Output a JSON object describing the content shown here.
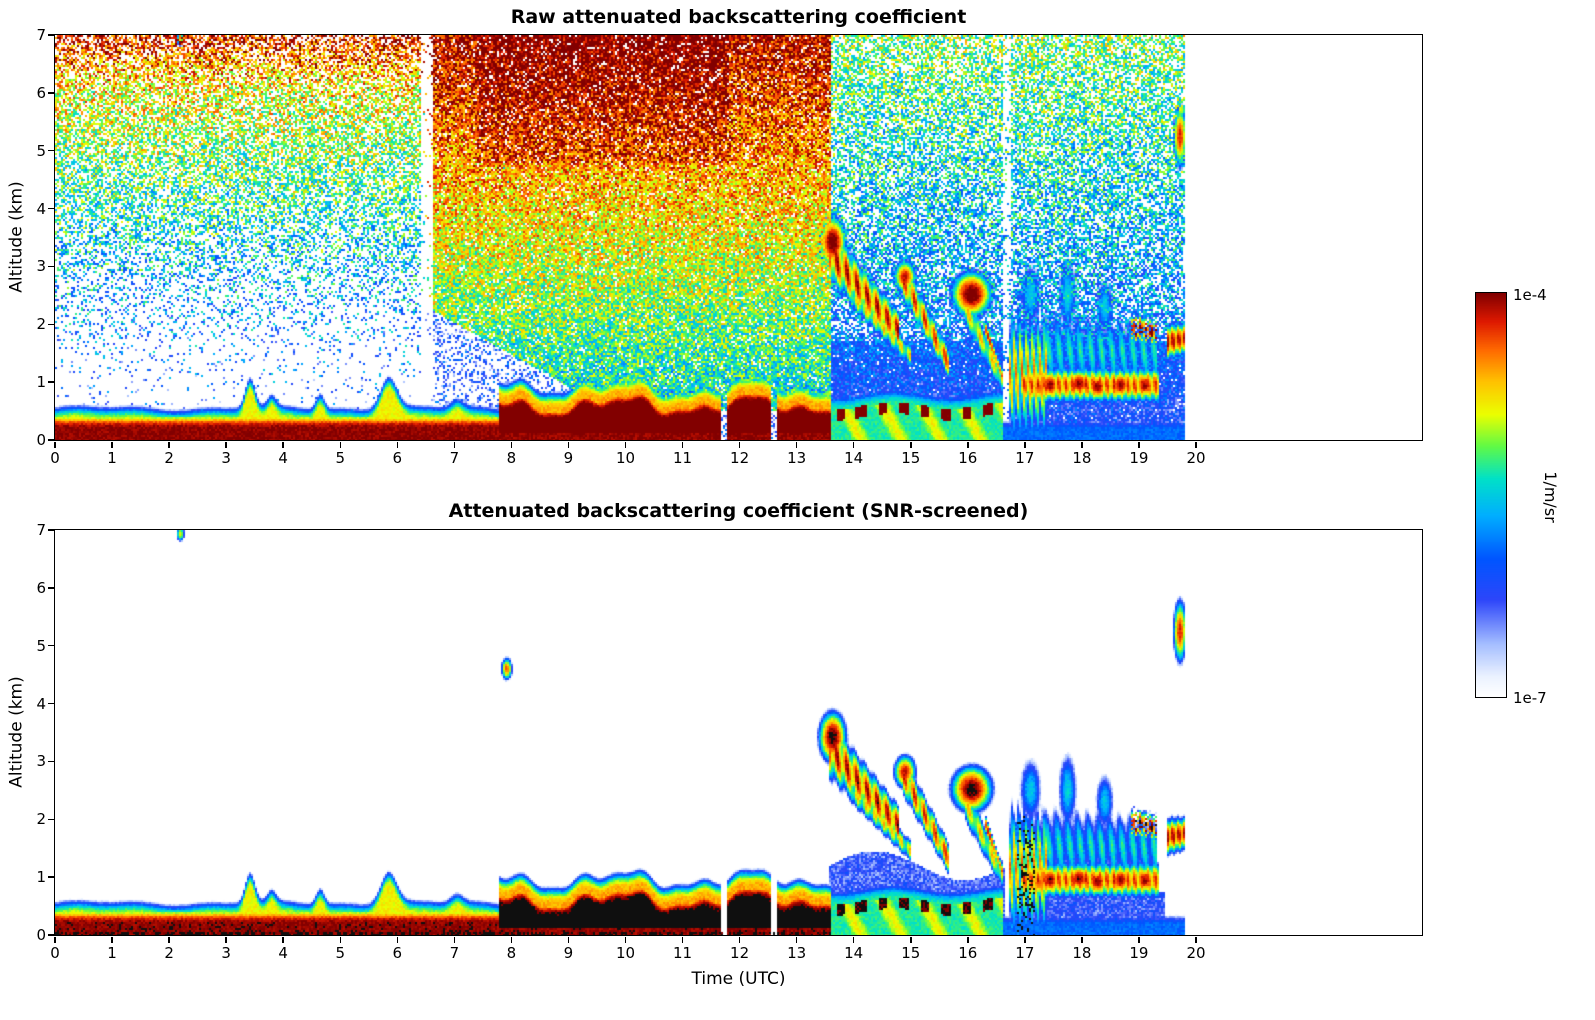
{
  "chart_data": {
    "type": "heatmap",
    "panels": [
      {
        "title": "Raw attenuated backscattering coefficient",
        "xlabel": "",
        "ylabel": "Altitude (km)",
        "xlim": [
          0,
          23.96
        ],
        "ylim": [
          0,
          7
        ],
        "xticks": [
          0,
          1,
          2,
          3,
          4,
          5,
          6,
          7,
          8,
          9,
          10,
          11,
          12,
          13,
          14,
          15,
          16,
          17,
          18,
          19,
          20
        ],
        "yticks": [
          0,
          1,
          2,
          3,
          4,
          5,
          6,
          7
        ],
        "show_noise": true,
        "show_black": false
      },
      {
        "title": "Attenuated backscattering coefficient (SNR-screened)",
        "xlabel": "Time (UTC)",
        "ylabel": "Altitude (km)",
        "xlim": [
          0,
          23.96
        ],
        "ylim": [
          0,
          7
        ],
        "xticks": [
          0,
          1,
          2,
          3,
          4,
          5,
          6,
          7,
          8,
          9,
          10,
          11,
          12,
          13,
          14,
          15,
          16,
          17,
          18,
          19,
          20
        ],
        "yticks": [
          0,
          1,
          2,
          3,
          4,
          5,
          6,
          7
        ],
        "show_noise": false,
        "show_black": true
      }
    ],
    "colorbar": {
      "top_label": "1e-4",
      "bottom_label": "1e-7",
      "units": "1/m/sr",
      "log_min": -7,
      "log_max": -4
    },
    "features": {
      "t_end": 19.82,
      "boundary_layer": {
        "spikes": [
          {
            "t": 3.42,
            "amp": 0.5,
            "w": 0.12
          },
          {
            "t": 3.8,
            "amp": 0.18,
            "w": 0.1
          },
          {
            "t": 4.65,
            "amp": 0.26,
            "w": 0.1
          },
          {
            "t": 5.85,
            "amp": 0.55,
            "w": 0.2
          },
          {
            "t": 7.05,
            "amp": 0.14,
            "w": 0.15
          }
        ],
        "gaps": [
          [
            11.68,
            11.78
          ],
          [
            12.56,
            12.64
          ]
        ]
      },
      "bands": [
        {
          "t0": 13.55,
          "z0": 3.25,
          "t1": 14.78,
          "z1": 1.9,
          "th0": 0.45,
          "th1": 0.3,
          "v": -4.25,
          "stripe": 0.45,
          "freq": 40
        },
        {
          "t0": 13.95,
          "z0": 2.5,
          "t1": 15.0,
          "z1": 1.45,
          "th0": 0.22,
          "th1": 0.18,
          "v": -4.85,
          "stripe": 0.4,
          "freq": 45
        },
        {
          "t0": 14.85,
          "z0": 2.8,
          "t1": 15.68,
          "z1": 1.3,
          "th0": 0.32,
          "th1": 0.24,
          "v": -4.4,
          "stripe": 0.45,
          "freq": 42
        },
        {
          "t0": 15.95,
          "z0": 2.3,
          "t1": 16.62,
          "z1": 1.0,
          "th0": 0.32,
          "th1": 0.22,
          "v": -4.8,
          "stripe": 0.35,
          "freq": 38
        },
        {
          "t0": 16.3,
          "z0": 1.95,
          "t1": 16.62,
          "z1": 1.05,
          "th0": 0.13,
          "th1": 0.1,
          "v": -4.3,
          "stripe": 0.2,
          "freq": 30
        },
        {
          "t0": 16.72,
          "z0": 1.15,
          "t1": 17.38,
          "z1": 1.1,
          "th0": 1.0,
          "th1": 0.95,
          "v": -4.75,
          "stripe": 0.55,
          "freq": 58
        },
        {
          "t0": 17.35,
          "z0": 1.55,
          "t1": 19.3,
          "z1": 1.5,
          "th0": 0.7,
          "th1": 0.6,
          "v": -5.5,
          "stripe": 0.4,
          "freq": 34
        },
        {
          "t0": 16.95,
          "z0": 0.95,
          "t1": 19.35,
          "z1": 0.95,
          "th0": 0.28,
          "th1": 0.28,
          "v": -4.35,
          "stripe": 0.3,
          "freq": 52
        },
        {
          "t0": 19.5,
          "z0": 1.7,
          "t1": 19.8,
          "z1": 1.75,
          "th0": 0.28,
          "th1": 0.25,
          "v": -4.15,
          "stripe": 0.3,
          "freq": 60
        },
        {
          "t0": 18.85,
          "z0": 1.95,
          "t1": 19.32,
          "z1": 1.85,
          "th0": 0.22,
          "th1": 0.18,
          "v": -3.9,
          "stripe": 0.5,
          "freq": 70,
          "speck": 0.35
        }
      ],
      "blobs": [
        {
          "t": 13.63,
          "z": 3.42,
          "rt": 0.12,
          "rz": 0.22,
          "v": -3.86
        },
        {
          "t": 14.9,
          "z": 2.82,
          "rt": 0.1,
          "rz": 0.15,
          "v": -4.15
        },
        {
          "t": 16.07,
          "z": 2.52,
          "rt": 0.18,
          "rz": 0.2,
          "v": -3.85
        },
        {
          "t": 7.92,
          "z": 4.6,
          "rt": 0.05,
          "rz": 0.1,
          "v": -4.35
        },
        {
          "t": 19.72,
          "z": 5.25,
          "rt": 0.06,
          "rz": 0.28,
          "v": -4.2
        },
        {
          "t": 2.2,
          "z": 6.93,
          "rt": 0.04,
          "rz": 0.07,
          "v": -4.8
        },
        {
          "t": 17.45,
          "z": 0.95,
          "rt": 0.09,
          "rz": 0.13,
          "v": -4.0
        },
        {
          "t": 17.95,
          "z": 0.98,
          "rt": 0.12,
          "rz": 0.12,
          "v": -4.02
        },
        {
          "t": 18.28,
          "z": 0.92,
          "rt": 0.09,
          "rz": 0.12,
          "v": -4.0
        },
        {
          "t": 18.68,
          "z": 0.95,
          "rt": 0.1,
          "rz": 0.12,
          "v": -4.0
        },
        {
          "t": 19.1,
          "z": 0.95,
          "rt": 0.1,
          "rz": 0.12,
          "v": -4.05
        },
        {
          "t": 17.1,
          "z": 2.5,
          "rt": 0.12,
          "rz": 0.35,
          "v": -5.5
        },
        {
          "t": 17.75,
          "z": 2.5,
          "rt": 0.1,
          "rz": 0.4,
          "v": -5.45
        },
        {
          "t": 18.4,
          "z": 2.3,
          "rt": 0.1,
          "rz": 0.3,
          "v": -5.5
        }
      ],
      "blue_regions": [
        {
          "t0": 13.58,
          "t1": 16.66,
          "z_top": 1.2,
          "wave": 0.25,
          "v": -6.35
        },
        {
          "t0": 16.75,
          "t1": 19.45,
          "z_top": 0.78,
          "wave": 0.05,
          "v": -6.3
        },
        {
          "t0": 16.75,
          "t1": 17.08,
          "z_top": 1.95,
          "wave": 0.1,
          "v": -6.0
        }
      ],
      "black_speckle": {
        "t0": 16.85,
        "t1": 17.18,
        "z_top": 2.05,
        "p": 0.18,
        "v": -3.85
      },
      "noise_stripe_t": [
        6.42,
        6.62
      ]
    }
  }
}
